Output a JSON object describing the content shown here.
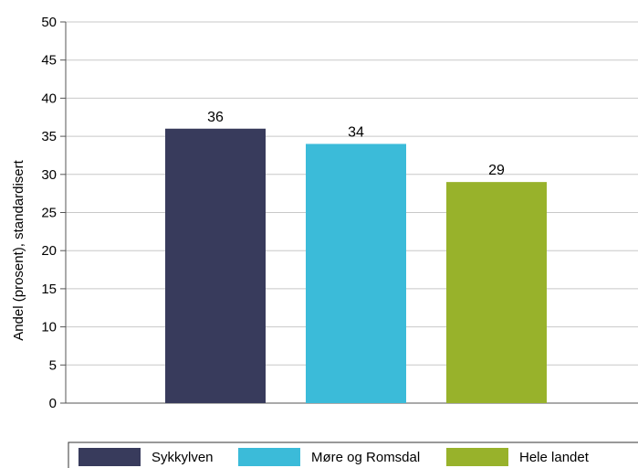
{
  "chart_data": {
    "type": "bar",
    "title": "",
    "xlabel": "",
    "ylabel": "Andel (prosent), standardisert",
    "ylim": [
      0,
      50
    ],
    "ytick_step": 5,
    "grid": true,
    "legend_position": "bottom",
    "categories": [
      "Sykkylven",
      "Møre og Romsdal",
      "Hele landet"
    ],
    "values": [
      36,
      34,
      29
    ],
    "colors": [
      "#383b5c",
      "#3bbbd9",
      "#98b22b"
    ],
    "legend": [
      "Sykkylven",
      "Møre og Romsdal",
      "Hele landet"
    ],
    "grid_color": "#c8c8c8",
    "axis_color": "#555555"
  }
}
